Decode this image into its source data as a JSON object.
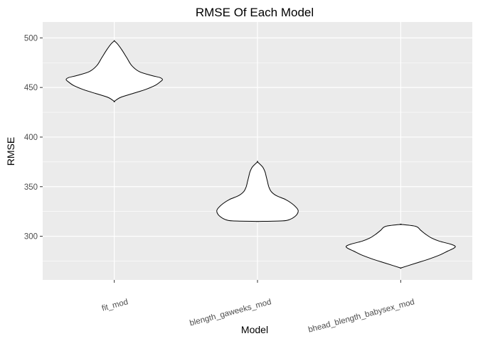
{
  "chart_data": {
    "type": "violin",
    "title": "RMSE Of Each Model",
    "xlabel": "Model",
    "ylabel": "RMSE",
    "categories": [
      "fit_mod",
      "blength_gaweeks_mod",
      "bhead_blength_babysex_mod"
    ],
    "ylim": [
      256,
      516
    ],
    "yticks": [
      300,
      350,
      400,
      450,
      500
    ],
    "grid": true,
    "panel_background": "#ebebeb",
    "grid_color": "#ffffff",
    "violin_fill": "#ffffff",
    "violin_stroke": "#000000",
    "series": [
      {
        "name": "fit_mod",
        "profile": [
          [
            436,
            0
          ],
          [
            440,
            10
          ],
          [
            444,
            30
          ],
          [
            448,
            50
          ],
          [
            452,
            65
          ],
          [
            456,
            74
          ],
          [
            458,
            77
          ],
          [
            460,
            73
          ],
          [
            462,
            60
          ],
          [
            466,
            40
          ],
          [
            472,
            28
          ],
          [
            480,
            20
          ],
          [
            488,
            12
          ],
          [
            494,
            5
          ],
          [
            497,
            0
          ]
        ]
      },
      {
        "name": "blength_gaweeks_mod",
        "profile": [
          [
            315,
            0
          ],
          [
            315.5,
            40
          ],
          [
            317,
            52
          ],
          [
            320,
            60
          ],
          [
            323,
            64
          ],
          [
            326,
            65
          ],
          [
            329,
            62
          ],
          [
            333,
            55
          ],
          [
            337,
            45
          ],
          [
            341,
            30
          ],
          [
            345,
            22
          ],
          [
            350,
            18
          ],
          [
            355,
            16
          ],
          [
            360,
            14
          ],
          [
            365,
            12
          ],
          [
            370,
            8
          ],
          [
            375,
            0
          ]
        ]
      },
      {
        "name": "bhead_blength_babysex_mod",
        "profile": [
          [
            268,
            0
          ],
          [
            270,
            10
          ],
          [
            273,
            25
          ],
          [
            277,
            45
          ],
          [
            281,
            62
          ],
          [
            285,
            75
          ],
          [
            288,
            85
          ],
          [
            290,
            87
          ],
          [
            292,
            80
          ],
          [
            295,
            62
          ],
          [
            298,
            50
          ],
          [
            302,
            40
          ],
          [
            306,
            32
          ],
          [
            310,
            24
          ],
          [
            312,
            0
          ]
        ]
      }
    ]
  }
}
